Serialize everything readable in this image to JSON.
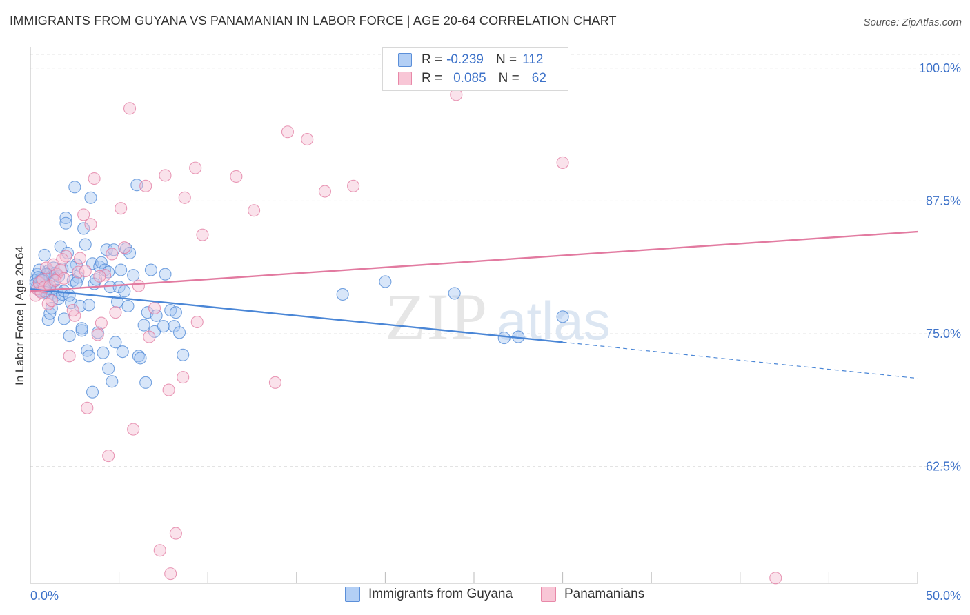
{
  "header": {
    "title": "IMMIGRANTS FROM GUYANA VS PANAMANIAN IN LABOR FORCE | AGE 20-64 CORRELATION CHART",
    "source": "Source: ZipAtlas.com"
  },
  "legend": {
    "r_label": "R =",
    "n_label": "N =",
    "rows": [
      {
        "r": "-0.239",
        "n": "112",
        "color": "#5b8fd9",
        "fill": "#b3cff5"
      },
      {
        "r": "0.085",
        "n": "62",
        "color": "#e888a8",
        "fill": "#f8c6d6"
      }
    ]
  },
  "bottom_legend": [
    "Immigrants from Guyana",
    "Panamanians"
  ],
  "watermark": {
    "zip": "ZIP",
    "atlas": "atlas"
  },
  "chart_data": {
    "type": "scatter",
    "title": "IMMIGRANTS FROM GUYANA VS PANAMANIAN IN LABOR FORCE | AGE 20-64 CORRELATION CHART",
    "xlabel": "",
    "ylabel": "In Labor Force | Age 20-64",
    "xlim": [
      0,
      50
    ],
    "ylim": [
      51.5,
      102
    ],
    "x_tick_labels": [
      "0.0%",
      "50.0%"
    ],
    "y_ticks": [
      62.5,
      75.0,
      87.5,
      100.0
    ],
    "y_tick_labels": [
      "62.5%",
      "75.0%",
      "87.5%",
      "100.0%"
    ],
    "grid": true,
    "legend_position": "top-center",
    "series": [
      {
        "name": "Immigrants from Guyana",
        "color": "#4a86d6",
        "fill": "#a9c8f2",
        "trend": {
          "x0": 0,
          "y0": 79.2,
          "x1": 30,
          "y1": 74.2,
          "dash_to_x": 50,
          "dash_to_y": 70.8
        },
        "points": [
          [
            0.3,
            80.0
          ],
          [
            0.4,
            79.5
          ],
          [
            0.5,
            79.1
          ],
          [
            0.6,
            80.2
          ],
          [
            0.7,
            79.8
          ],
          [
            0.8,
            79.0
          ],
          [
            0.9,
            80.5
          ],
          [
            1.0,
            79.3
          ],
          [
            1.1,
            80.8
          ],
          [
            1.2,
            78.8
          ],
          [
            0.5,
            79.7
          ],
          [
            0.6,
            80.1
          ],
          [
            0.7,
            79.4
          ],
          [
            0.8,
            80.3
          ],
          [
            0.9,
            79.6
          ],
          [
            1.0,
            80.9
          ],
          [
            1.1,
            79.2
          ],
          [
            1.2,
            80.4
          ],
          [
            1.3,
            79.9
          ],
          [
            1.4,
            78.6
          ],
          [
            0.4,
            80.6
          ],
          [
            0.5,
            81.0
          ],
          [
            0.6,
            80.0
          ],
          [
            0.8,
            82.4
          ],
          [
            1.0,
            76.3
          ],
          [
            1.1,
            76.9
          ],
          [
            1.2,
            77.4
          ],
          [
            1.3,
            81.2
          ],
          [
            1.4,
            80.7
          ],
          [
            1.5,
            79.1
          ],
          [
            1.6,
            78.3
          ],
          [
            1.7,
            83.2
          ],
          [
            1.8,
            78.7
          ],
          [
            1.9,
            76.4
          ],
          [
            2.0,
            85.9
          ],
          [
            2.0,
            85.4
          ],
          [
            2.1,
            82.6
          ],
          [
            2.2,
            74.8
          ],
          [
            2.3,
            77.9
          ],
          [
            2.4,
            80.0
          ],
          [
            2.5,
            88.8
          ],
          [
            2.6,
            81.5
          ],
          [
            2.7,
            80.3
          ],
          [
            2.8,
            77.6
          ],
          [
            2.9,
            75.3
          ],
          [
            3.0,
            84.9
          ],
          [
            3.1,
            83.4
          ],
          [
            3.2,
            73.4
          ],
          [
            3.3,
            77.7
          ],
          [
            3.4,
            87.8
          ],
          [
            3.5,
            81.6
          ],
          [
            3.6,
            79.7
          ],
          [
            3.7,
            80.1
          ],
          [
            3.8,
            75.1
          ],
          [
            3.9,
            81.3
          ],
          [
            4.0,
            81.7
          ],
          [
            4.1,
            73.2
          ],
          [
            4.2,
            81.0
          ],
          [
            4.3,
            82.9
          ],
          [
            4.4,
            71.7
          ],
          [
            4.5,
            79.4
          ],
          [
            4.6,
            70.5
          ],
          [
            4.7,
            82.9
          ],
          [
            4.8,
            74.2
          ],
          [
            4.9,
            78.0
          ],
          [
            5.0,
            79.4
          ],
          [
            5.1,
            81.0
          ],
          [
            5.2,
            73.3
          ],
          [
            5.3,
            79.0
          ],
          [
            5.4,
            83.0
          ],
          [
            5.5,
            77.6
          ],
          [
            5.6,
            82.6
          ],
          [
            6.0,
            89.0
          ],
          [
            6.1,
            72.9
          ],
          [
            6.2,
            72.7
          ],
          [
            6.5,
            70.4
          ],
          [
            6.6,
            77.0
          ],
          [
            6.8,
            81.0
          ],
          [
            7.0,
            75.2
          ],
          [
            7.1,
            76.7
          ],
          [
            7.5,
            75.7
          ],
          [
            7.6,
            80.6
          ],
          [
            7.9,
            77.2
          ],
          [
            8.1,
            75.7
          ],
          [
            8.2,
            77.0
          ],
          [
            8.4,
            75.1
          ],
          [
            8.6,
            73.0
          ],
          [
            3.5,
            69.5
          ],
          [
            1.9,
            79.0
          ],
          [
            2.2,
            78.6
          ],
          [
            0.9,
            80.6
          ],
          [
            1.6,
            80.4
          ],
          [
            1.8,
            81.1
          ],
          [
            2.3,
            81.3
          ],
          [
            2.6,
            79.8
          ],
          [
            2.9,
            75.5
          ],
          [
            3.3,
            72.9
          ],
          [
            4.4,
            80.8
          ],
          [
            5.8,
            80.5
          ],
          [
            6.4,
            75.8
          ],
          [
            17.6,
            78.7
          ],
          [
            20.0,
            79.9
          ],
          [
            23.9,
            78.8
          ],
          [
            27.5,
            74.7
          ],
          [
            30.0,
            76.6
          ],
          [
            26.7,
            74.6
          ],
          [
            0.3,
            79.7
          ],
          [
            0.45,
            80.3
          ],
          [
            0.55,
            79.0
          ],
          [
            0.65,
            80.0
          ],
          [
            0.75,
            79.3
          ],
          [
            0.85,
            78.9
          ]
        ]
      },
      {
        "name": "Panamanians",
        "color": "#e27aa0",
        "fill": "#f5bfd2",
        "trend": {
          "x0": 0,
          "y0": 79.0,
          "x1": 50,
          "y1": 84.6
        },
        "points": [
          [
            0.3,
            78.6
          ],
          [
            0.4,
            79.2
          ],
          [
            0.5,
            79.8
          ],
          [
            0.6,
            78.9
          ],
          [
            0.7,
            80.1
          ],
          [
            0.8,
            79.4
          ],
          [
            0.9,
            81.2
          ],
          [
            1.0,
            77.8
          ],
          [
            1.1,
            79.5
          ],
          [
            1.2,
            78.1
          ],
          [
            1.3,
            81.5
          ],
          [
            1.5,
            80.6
          ],
          [
            1.7,
            81.0
          ],
          [
            1.9,
            80.2
          ],
          [
            2.0,
            82.3
          ],
          [
            2.2,
            72.9
          ],
          [
            2.5,
            76.7
          ],
          [
            2.7,
            80.8
          ],
          [
            3.0,
            86.2
          ],
          [
            3.2,
            68.0
          ],
          [
            3.4,
            85.3
          ],
          [
            3.6,
            89.6
          ],
          [
            3.8,
            74.9
          ],
          [
            4.0,
            76.0
          ],
          [
            4.2,
            80.5
          ],
          [
            4.4,
            63.5
          ],
          [
            4.6,
            82.5
          ],
          [
            4.8,
            77.0
          ],
          [
            5.1,
            86.8
          ],
          [
            5.3,
            83.1
          ],
          [
            5.6,
            96.2
          ],
          [
            5.8,
            66.0
          ],
          [
            6.1,
            79.5
          ],
          [
            6.5,
            88.9
          ],
          [
            6.7,
            74.7
          ],
          [
            7.0,
            77.4
          ],
          [
            7.3,
            54.6
          ],
          [
            7.6,
            89.9
          ],
          [
            7.8,
            69.7
          ],
          [
            7.9,
            52.4
          ],
          [
            8.2,
            56.2
          ],
          [
            8.6,
            70.9
          ],
          [
            8.7,
            87.8
          ],
          [
            9.3,
            90.6
          ],
          [
            9.7,
            84.3
          ],
          [
            9.4,
            76.1
          ],
          [
            11.6,
            89.8
          ],
          [
            12.6,
            86.6
          ],
          [
            13.8,
            70.4
          ],
          [
            14.5,
            94.0
          ],
          [
            15.6,
            93.3
          ],
          [
            16.6,
            88.4
          ],
          [
            18.2,
            88.9
          ],
          [
            24.0,
            97.5
          ],
          [
            30.0,
            91.1
          ],
          [
            42.0,
            52.0
          ],
          [
            1.8,
            82.0
          ],
          [
            2.4,
            77.2
          ],
          [
            3.1,
            80.9
          ],
          [
            3.9,
            80.4
          ],
          [
            2.8,
            82.1
          ],
          [
            1.4,
            80.0
          ]
        ]
      }
    ]
  }
}
